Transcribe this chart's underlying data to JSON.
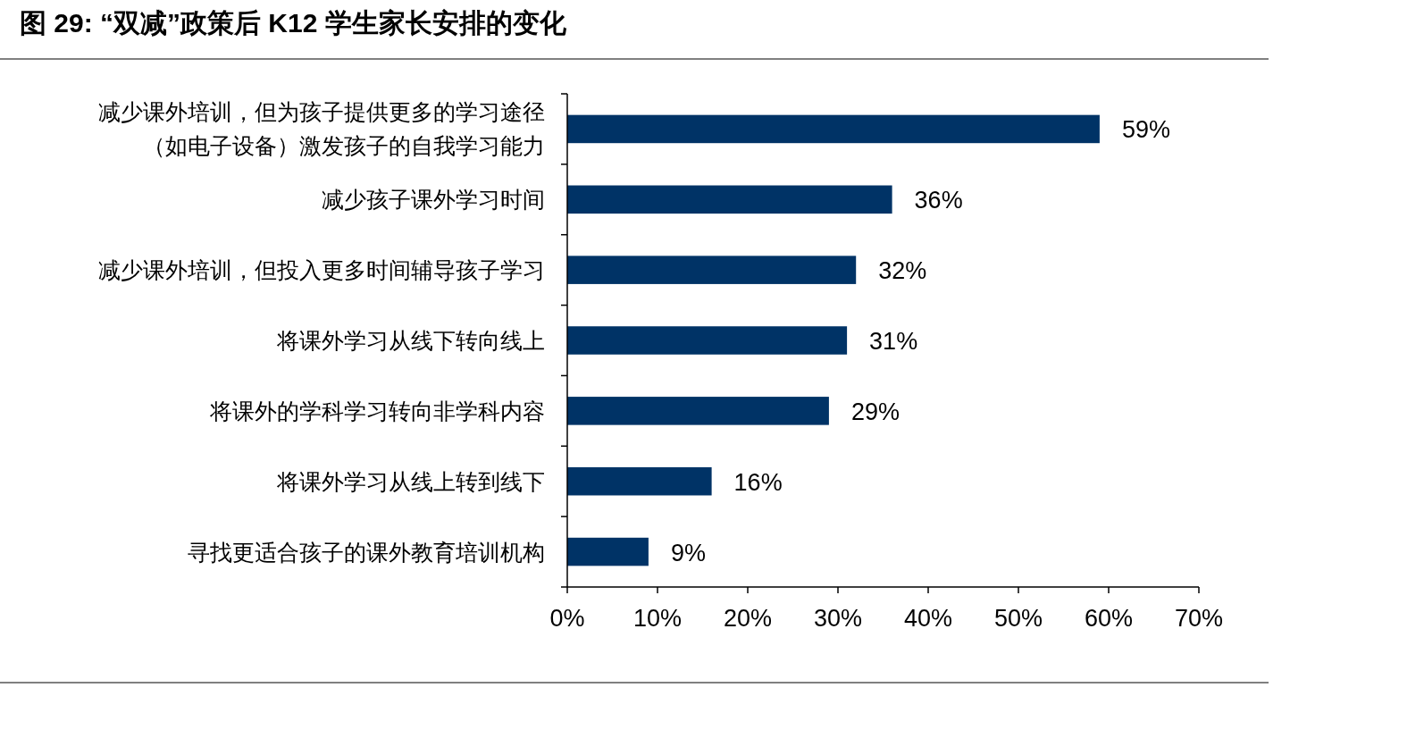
{
  "chart_data": {
    "type": "bar",
    "orientation": "horizontal",
    "title": "图 29:  “双减”政策后 K12 学生家长安排的变化",
    "categories": [
      "减少课外培训，但为孩子提供更多的学习途径（如电子设备）激发孩子的自我学习能力",
      "减少孩子课外学习时间",
      "减少课外培训，但投入更多时间辅导孩子学习",
      "将课外学习从线下转向线上",
      "将课外的学科学习转向非学科内容",
      "将课外学习从线上转到线下",
      "寻找更适合孩子的课外教育培训机构"
    ],
    "values": [
      59,
      36,
      32,
      31,
      29,
      16,
      9
    ],
    "value_labels": [
      "59%",
      "36%",
      "32%",
      "31%",
      "29%",
      "16%",
      "9%"
    ],
    "color": "#003366",
    "xlim": [
      0,
      70
    ],
    "xticks": [
      {
        "value": 0,
        "label": "0%"
      },
      {
        "value": 10,
        "label": "10%"
      },
      {
        "value": 20,
        "label": "20%"
      },
      {
        "value": 30,
        "label": "30%"
      },
      {
        "value": 40,
        "label": "40%"
      },
      {
        "value": 50,
        "label": "50%"
      },
      {
        "value": 60,
        "label": "60%"
      },
      {
        "value": 70,
        "label": "70%"
      }
    ],
    "grid": false
  }
}
